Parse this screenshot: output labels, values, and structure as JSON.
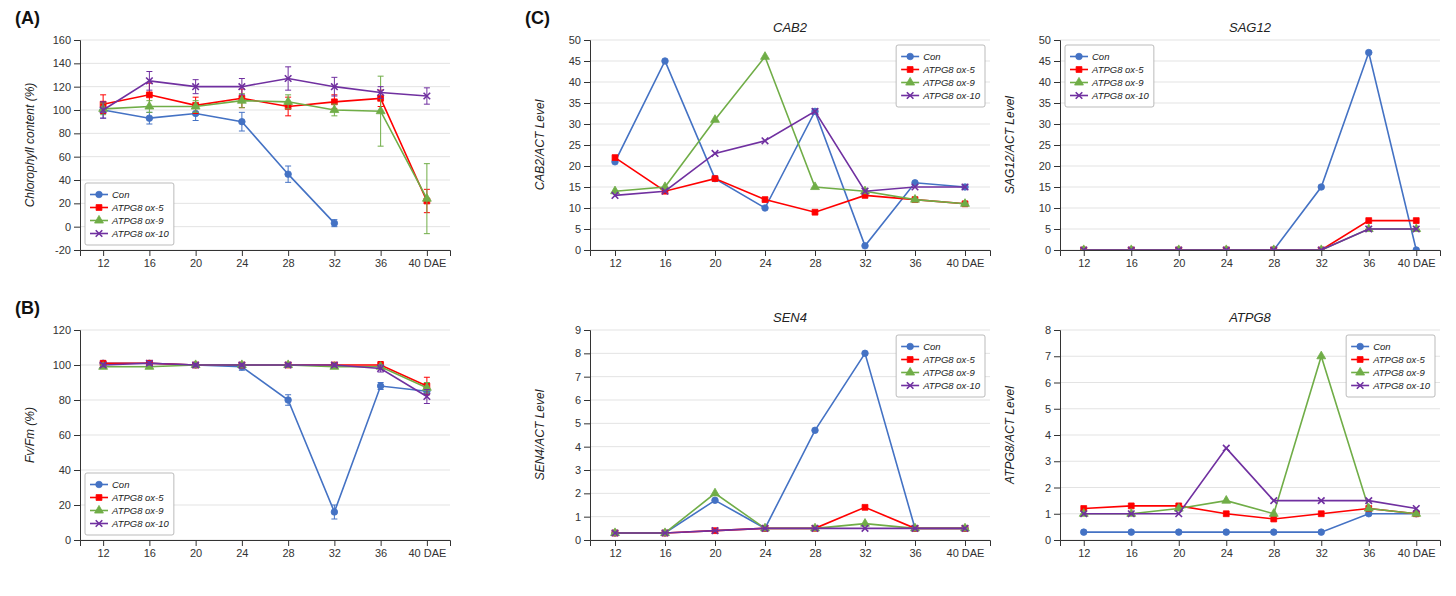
{
  "chart_data": [
    {
      "type": "line",
      "ylabel": "Chlorophyll content (%)",
      "annotations": [
        "(A)"
      ],
      "x": [
        12,
        16,
        20,
        24,
        28,
        32,
        36,
        40
      ],
      "xlim": [
        10,
        42
      ],
      "xticks": [
        12,
        16,
        20,
        24,
        28,
        32,
        36,
        {
          "value": 40,
          "label": "40 DAE"
        }
      ],
      "ylim": [
        -20,
        160
      ],
      "yticks": [
        -20,
        0,
        20,
        40,
        60,
        80,
        100,
        120,
        140,
        160
      ],
      "grid": true,
      "legend": "lower left",
      "series": [
        {
          "name": "Con",
          "color": "#4472C4",
          "marker": "circle",
          "values": [
            100,
            93,
            97,
            90,
            45,
            3,
            null,
            null
          ],
          "errors": [
            7,
            5,
            6,
            8,
            7,
            3,
            null,
            null
          ]
        },
        {
          "name": "ATPG8 ox-5",
          "color": "#FF0000",
          "marker": "square",
          "values": [
            105,
            113,
            104,
            110,
            103,
            107,
            110,
            22
          ],
          "errors": [
            8,
            10,
            7,
            8,
            8,
            6,
            7,
            10
          ]
        },
        {
          "name": "ATPG8 ox-9",
          "color": "#70AD47",
          "marker": "triangle",
          "values": [
            101,
            103,
            103,
            108,
            107,
            100,
            99,
            24
          ],
          "errors": [
            5,
            5,
            5,
            6,
            6,
            5,
            30,
            30
          ]
        },
        {
          "name": "ATPG8 ox-10",
          "color": "#7030A0",
          "marker": "x",
          "values": [
            100,
            125,
            120,
            120,
            127,
            120,
            115,
            112
          ],
          "errors": [
            7,
            8,
            6,
            7,
            10,
            8,
            5,
            7
          ]
        }
      ]
    },
    {
      "type": "line",
      "ylabel": "Fv/Fm (%)",
      "annotations": [
        "(B)"
      ],
      "x": [
        12,
        16,
        20,
        24,
        28,
        32,
        36,
        40
      ],
      "xlim": [
        10,
        42
      ],
      "xticks": [
        12,
        16,
        20,
        24,
        28,
        32,
        36,
        {
          "value": 40,
          "label": "40 DAE"
        }
      ],
      "ylim": [
        0,
        120
      ],
      "yticks": [
        0,
        20,
        40,
        60,
        80,
        100,
        120
      ],
      "grid": true,
      "legend": "lower left",
      "series": [
        {
          "name": "Con",
          "color": "#4472C4",
          "marker": "circle",
          "values": [
            101,
            101,
            100,
            99,
            80,
            16,
            88,
            85
          ],
          "errors": [
            1,
            1,
            1,
            2,
            3,
            4,
            2,
            2
          ]
        },
        {
          "name": "ATPG8 ox-5",
          "color": "#FF0000",
          "marker": "square",
          "values": [
            101,
            101,
            100,
            100,
            100,
            100,
            100,
            88
          ],
          "errors": [
            1,
            1,
            1,
            1,
            1,
            1,
            2,
            5
          ]
        },
        {
          "name": "ATPG8 ox-9",
          "color": "#70AD47",
          "marker": "triangle",
          "values": [
            99,
            99,
            100,
            100,
            100,
            99,
            99,
            87
          ],
          "errors": [
            1,
            1,
            1,
            1,
            1,
            1,
            1,
            3
          ]
        },
        {
          "name": "ATPG8 ox-10",
          "color": "#7030A0",
          "marker": "x",
          "values": [
            100,
            101,
            100,
            100,
            100,
            100,
            98,
            82
          ],
          "errors": [
            1,
            1,
            1,
            1,
            1,
            1,
            2,
            4
          ]
        }
      ]
    },
    {
      "type": "line",
      "title": "CAB2",
      "ylabel": "CAB2/ACT Level",
      "annotations": [
        "(C)"
      ],
      "x": [
        12,
        16,
        20,
        24,
        28,
        32,
        36,
        40
      ],
      "xlim": [
        10,
        42
      ],
      "xticks": [
        12,
        16,
        20,
        24,
        28,
        32,
        36,
        {
          "value": 40,
          "label": "40 DAE"
        }
      ],
      "ylim": [
        0,
        50
      ],
      "yticks": [
        0,
        5,
        10,
        15,
        20,
        25,
        30,
        35,
        40,
        45,
        50
      ],
      "grid": true,
      "legend": "upper right",
      "series": [
        {
          "name": "Con",
          "color": "#4472C4",
          "marker": "circle",
          "values": [
            21,
            45,
            17,
            10,
            33,
            1,
            16,
            15
          ]
        },
        {
          "name": "ATPG8 ox-5",
          "color": "#FF0000",
          "marker": "square",
          "values": [
            22,
            14,
            17,
            12,
            9,
            13,
            12,
            11
          ]
        },
        {
          "name": "ATPG8 ox-9",
          "color": "#70AD47",
          "marker": "triangle",
          "values": [
            14,
            15,
            31,
            46,
            15,
            14,
            12,
            11
          ]
        },
        {
          "name": "ATPG8 ox-10",
          "color": "#7030A0",
          "marker": "x",
          "values": [
            13,
            14,
            23,
            26,
            33,
            14,
            15,
            15
          ]
        }
      ]
    },
    {
      "type": "line",
      "title": "SAG12",
      "ylabel": "SAG12/ACT Level",
      "x": [
        12,
        16,
        20,
        24,
        28,
        32,
        36,
        40
      ],
      "xlim": [
        10,
        42
      ],
      "xticks": [
        12,
        16,
        20,
        24,
        28,
        32,
        36,
        {
          "value": 40,
          "label": "40 DAE"
        }
      ],
      "ylim": [
        0,
        50
      ],
      "yticks": [
        0,
        5,
        10,
        15,
        20,
        25,
        30,
        35,
        40,
        45,
        50
      ],
      "grid": true,
      "legend": "upper left",
      "series": [
        {
          "name": "Con",
          "color": "#4472C4",
          "marker": "circle",
          "values": [
            0,
            0,
            0,
            0,
            0,
            15,
            47,
            0
          ]
        },
        {
          "name": "ATPG8 ox-5",
          "color": "#FF0000",
          "marker": "square",
          "values": [
            0,
            0,
            0,
            0,
            0,
            0,
            7,
            7
          ]
        },
        {
          "name": "ATPG8 ox-9",
          "color": "#70AD47",
          "marker": "triangle",
          "values": [
            0,
            0,
            0,
            0,
            0,
            0,
            5,
            5
          ]
        },
        {
          "name": "ATPG8 ox-10",
          "color": "#7030A0",
          "marker": "x",
          "values": [
            0,
            0,
            0,
            0,
            0,
            0,
            5,
            5
          ]
        }
      ]
    },
    {
      "type": "line",
      "title": "SEN4",
      "ylabel": "SEN4/ACT Level",
      "x": [
        12,
        16,
        20,
        24,
        28,
        32,
        36,
        40
      ],
      "xlim": [
        10,
        42
      ],
      "xticks": [
        12,
        16,
        20,
        24,
        28,
        32,
        36,
        {
          "value": 40,
          "label": "40 DAE"
        }
      ],
      "ylim": [
        0,
        9
      ],
      "yticks": [
        0,
        1,
        2,
        3,
        4,
        5,
        6,
        7,
        8,
        9
      ],
      "grid": true,
      "legend": "upper right",
      "series": [
        {
          "name": "Con",
          "color": "#4472C4",
          "marker": "circle",
          "values": [
            0.3,
            0.3,
            1.7,
            0.5,
            4.7,
            8.0,
            0.5,
            0.5
          ]
        },
        {
          "name": "ATPG8 ox-5",
          "color": "#FF0000",
          "marker": "square",
          "values": [
            0.3,
            0.3,
            0.4,
            0.5,
            0.5,
            1.4,
            0.5,
            0.5
          ]
        },
        {
          "name": "ATPG8 ox-9",
          "color": "#70AD47",
          "marker": "triangle",
          "values": [
            0.3,
            0.3,
            2.0,
            0.5,
            0.5,
            0.7,
            0.5,
            0.5
          ]
        },
        {
          "name": "ATPG8 ox-10",
          "color": "#7030A0",
          "marker": "x",
          "values": [
            0.3,
            0.3,
            0.4,
            0.5,
            0.5,
            0.5,
            0.5,
            0.5
          ]
        }
      ]
    },
    {
      "type": "line",
      "title": "ATPG8",
      "ylabel": "ATPG8/ACT Level",
      "x": [
        12,
        16,
        20,
        24,
        28,
        32,
        36,
        40
      ],
      "xlim": [
        10,
        42
      ],
      "xticks": [
        12,
        16,
        20,
        24,
        28,
        32,
        36,
        {
          "value": 40,
          "label": "40 DAE"
        }
      ],
      "ylim": [
        0,
        8
      ],
      "yticks": [
        0,
        1,
        2,
        3,
        4,
        5,
        6,
        7,
        8
      ],
      "grid": true,
      "legend": "upper right",
      "series": [
        {
          "name": "Con",
          "color": "#4472C4",
          "marker": "circle",
          "values": [
            0.3,
            0.3,
            0.3,
            0.3,
            0.3,
            0.3,
            1.0,
            1.0
          ]
        },
        {
          "name": "ATPG8 ox-5",
          "color": "#FF0000",
          "marker": "square",
          "values": [
            1.2,
            1.3,
            1.3,
            1.0,
            0.8,
            1.0,
            1.2,
            1.0
          ]
        },
        {
          "name": "ATPG8 ox-9",
          "color": "#70AD47",
          "marker": "triangle",
          "values": [
            1.0,
            1.0,
            1.2,
            1.5,
            1.0,
            7.0,
            1.2,
            1.0
          ]
        },
        {
          "name": "ATPG8 ox-10",
          "color": "#7030A0",
          "marker": "x",
          "values": [
            1.0,
            1.0,
            1.0,
            3.5,
            1.5,
            1.5,
            1.5,
            1.2
          ]
        }
      ]
    }
  ]
}
